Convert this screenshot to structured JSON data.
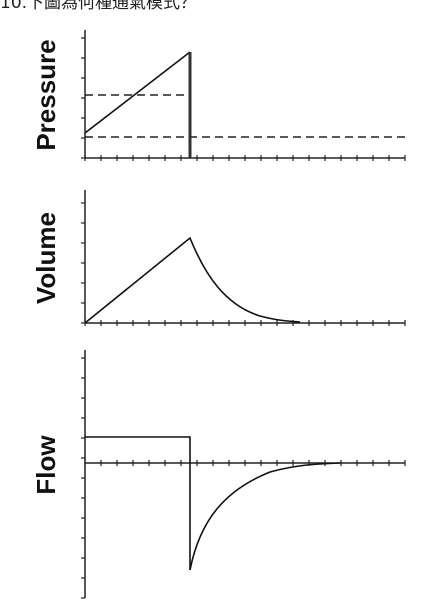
{
  "header": {
    "title": "10.下圖為何種通氣模式？"
  },
  "panels": [
    {
      "label": "Pressure"
    },
    {
      "label": "Volume"
    },
    {
      "label": "Flow"
    }
  ]
}
